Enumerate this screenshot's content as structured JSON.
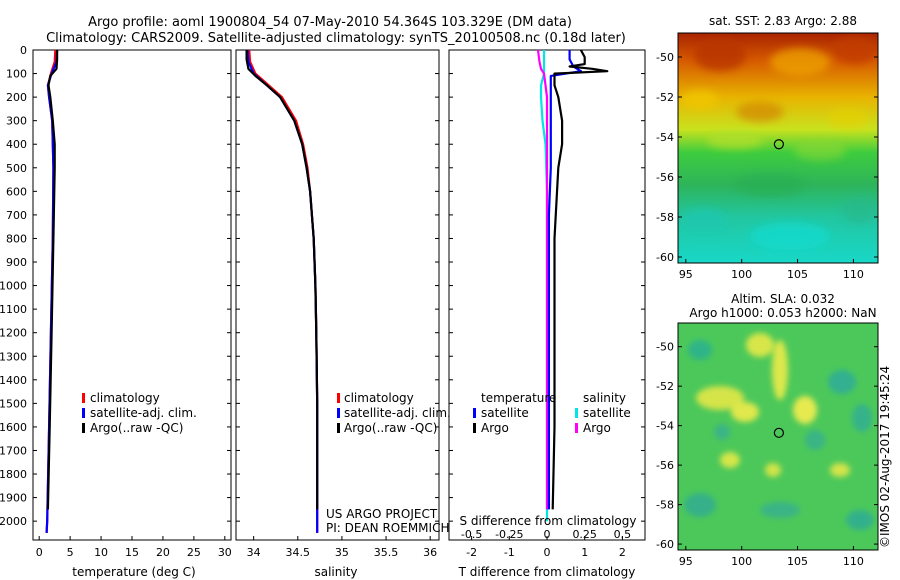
{
  "header": {
    "title_line1": "Argo profile: aoml 1900804_54 07-May-2010 54.364S 103.329E (DM data)",
    "title_line2": "Climatology: CARS2009. Satellite-adjusted climatology: synTS_20100508.nc (0.18d later)"
  },
  "colors": {
    "climatology": "#ff0000",
    "satellite": "#0000ff",
    "argo": "#000000",
    "sat_s": "#00e5e5",
    "argo_s": "#ff00ff"
  },
  "depth_ticks": [
    "0",
    "100",
    "200",
    "300",
    "400",
    "500",
    "600",
    "700",
    "800",
    "900",
    "1000",
    "1100",
    "1200",
    "1300",
    "1400",
    "1500",
    "1600",
    "1700",
    "1800",
    "1900",
    "2000"
  ],
  "temp_panel": {
    "xlabel": "temperature (deg C)",
    "xticks": [
      "0",
      "5",
      "10",
      "15",
      "20",
      "25",
      "30"
    ],
    "legend": [
      "climatology",
      "satellite-adj. clim.",
      "Argo(..raw -QC)"
    ]
  },
  "sal_panel": {
    "xlabel": "salinity",
    "xticks": [
      "34",
      "34.5",
      "35",
      "35.5",
      "36"
    ],
    "legend": [
      "climatology",
      "satellite-adj. clim.",
      "Argo(..raw -QC)"
    ],
    "credit1": "US ARGO PROJECT",
    "credit2": "PI: DEAN ROEMMICH"
  },
  "diff_panel": {
    "xlabel": "T difference from climatology",
    "s_label": "S difference from climatology",
    "s_ticks": [
      "-0.5",
      "-0.25",
      "0",
      "0.25",
      "0.5"
    ],
    "t_ticks": [
      "-2",
      "-1",
      "0",
      "1",
      "2"
    ],
    "legend_temperature": "temperature",
    "legend_salinity": "salinity",
    "legend_satellite": "satellite",
    "legend_argo": "Argo"
  },
  "map_sst": {
    "title": "sat. SST: 2.83 Argo: 2.88",
    "yticks": [
      "-50",
      "-52",
      "-54",
      "-56",
      "-58",
      "-60"
    ],
    "xticks": [
      "95",
      "100",
      "105",
      "110"
    ]
  },
  "map_sla": {
    "title1": "Altim. SLA: 0.032",
    "title2": "Argo h1000: 0.053 h2000: NaN",
    "yticks": [
      "-50",
      "-52",
      "-54",
      "-56",
      "-58",
      "-60"
    ],
    "xticks": [
      "95",
      "100",
      "105",
      "110"
    ]
  },
  "footer": {
    "stamp": "©IMOS 02-Aug-2017 19:45:24"
  },
  "chart_data": [
    {
      "type": "line",
      "title": "",
      "xlabel": "temperature (deg C)",
      "ylabel": "",
      "xlim": [
        -1,
        31
      ],
      "ylim": [
        2080,
        0
      ],
      "series": [
        {
          "name": "climatology",
          "depth": [
            0,
            50,
            100,
            150,
            200,
            300,
            500,
            800,
            1200,
            1600,
            2000,
            2050
          ],
          "values": [
            2.6,
            2.5,
            1.9,
            1.4,
            1.6,
            2.1,
            2.3,
            2.2,
            1.9,
            1.6,
            1.3,
            1.2
          ]
        },
        {
          "name": "satellite-adj. clim.",
          "depth": [
            0,
            50,
            100,
            150,
            200,
            300,
            500,
            800,
            1200,
            1600,
            2000,
            2050
          ],
          "values": [
            2.9,
            2.8,
            2.0,
            1.4,
            1.6,
            2.1,
            2.3,
            2.2,
            1.9,
            1.6,
            1.3,
            1.2
          ]
        },
        {
          "name": "Argo(..raw -QC)",
          "depth": [
            0,
            40,
            80,
            110,
            150,
            200,
            300,
            400,
            500,
            800,
            1200,
            1600,
            1950
          ],
          "values": [
            2.9,
            2.9,
            2.8,
            1.8,
            1.5,
            1.8,
            2.2,
            2.5,
            2.5,
            2.3,
            2.0,
            1.7,
            1.4
          ]
        }
      ]
    },
    {
      "type": "line",
      "title": "",
      "xlabel": "salinity",
      "ylabel": "",
      "xlim": [
        33.8,
        36.1
      ],
      "ylim": [
        2080,
        0
      ],
      "series": [
        {
          "name": "climatology",
          "depth": [
            0,
            50,
            100,
            150,
            200,
            300,
            400,
            500,
            600,
            800,
            1000,
            1200,
            1500,
            2000,
            2050
          ],
          "values": [
            33.95,
            33.96,
            34.02,
            34.17,
            34.32,
            34.48,
            34.56,
            34.61,
            34.64,
            34.68,
            34.7,
            34.71,
            34.72,
            34.72,
            34.72
          ]
        },
        {
          "name": "satellite-adj. clim.",
          "depth": [
            0,
            50,
            100,
            150,
            200,
            300,
            400,
            500,
            600,
            800,
            1000,
            1200,
            1500,
            2000,
            2050
          ],
          "values": [
            33.93,
            33.94,
            34.0,
            34.15,
            34.3,
            34.46,
            34.55,
            34.6,
            34.64,
            34.68,
            34.7,
            34.71,
            34.72,
            34.72,
            34.72
          ]
        },
        {
          "name": "Argo(..raw -QC)",
          "depth": [
            0,
            40,
            80,
            110,
            150,
            200,
            300,
            400,
            500,
            600,
            800,
            1000,
            1200,
            1500,
            1950
          ],
          "values": [
            33.92,
            33.92,
            33.94,
            34.02,
            34.15,
            34.3,
            34.46,
            34.55,
            34.6,
            34.64,
            34.68,
            34.7,
            34.71,
            34.72,
            34.72
          ]
        }
      ]
    },
    {
      "type": "line",
      "title": "",
      "xlabel": "T difference from climatology",
      "ylabel": "",
      "xlim": [
        -2.6,
        2.6
      ],
      "ylim": [
        2080,
        0
      ],
      "series": [
        {
          "name": "satellite",
          "depth": [
            0,
            40,
            70,
            90,
            110,
            150,
            200,
            300,
            400,
            500,
            700,
            1000,
            1500,
            1950
          ],
          "values": [
            0.6,
            0.6,
            0.7,
            0.9,
            0.1,
            0.1,
            0.1,
            0.1,
            0.1,
            0.1,
            0.05,
            0.05,
            0.05,
            0.05
          ]
        },
        {
          "name": "Argo",
          "depth": [
            0,
            30,
            60,
            70,
            80,
            90,
            100,
            110,
            150,
            200,
            300,
            400,
            500,
            800,
            1200,
            1600,
            1950
          ],
          "values": [
            0.9,
            1.0,
            1.0,
            0.6,
            1.2,
            1.6,
            0.2,
            0.2,
            0.2,
            0.3,
            0.4,
            0.4,
            0.3,
            0.2,
            0.2,
            0.2,
            0.15
          ]
        }
      ]
    },
    {
      "type": "line",
      "title": "",
      "xlabel": "S difference from climatology",
      "ylabel": "",
      "xlim": [
        -0.65,
        0.65
      ],
      "ylim": [
        2080,
        0
      ],
      "series": [
        {
          "name": "satellite",
          "depth": [
            0,
            50,
            100,
            150,
            200,
            300,
            400,
            600,
            800,
            1200,
            1600,
            2000
          ],
          "values": [
            -0.02,
            -0.02,
            -0.02,
            -0.04,
            -0.04,
            -0.03,
            -0.01,
            0.0,
            0.0,
            0.0,
            0.0,
            0.0
          ]
        },
        {
          "name": "Argo",
          "depth": [
            0,
            50,
            80,
            100,
            150,
            200,
            1950
          ],
          "values": [
            -0.06,
            -0.05,
            -0.04,
            -0.02,
            -0.01,
            0.0,
            0.0
          ]
        }
      ]
    },
    {
      "type": "heatmap",
      "title": "sat. SST: 2.83 Argo: 2.88",
      "xlim": [
        94.3,
        112.2
      ],
      "ylim": [
        -60.3,
        -48.8
      ],
      "argo_position": [
        103.329,
        -54.364
      ]
    },
    {
      "type": "heatmap",
      "title": "Altim. SLA: 0.032",
      "xlim": [
        94.3,
        112.2
      ],
      "ylim": [
        -60.3,
        -48.8
      ],
      "argo_position": [
        103.329,
        -54.364
      ]
    }
  ]
}
